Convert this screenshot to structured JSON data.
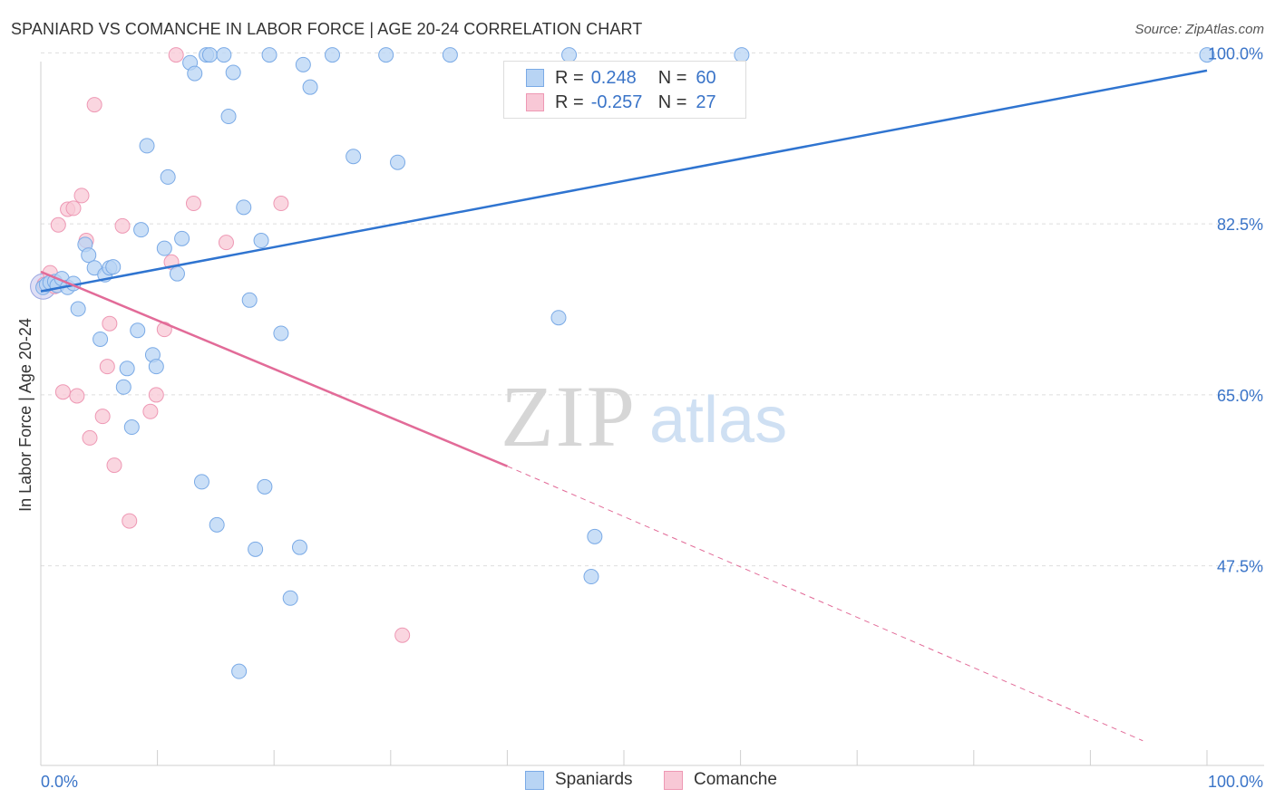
{
  "header": {
    "title": "SPANIARD VS COMANCHE IN LABOR FORCE | AGE 20-24 CORRELATION CHART",
    "source": "Source: ZipAtlas.com"
  },
  "colors": {
    "blue_fill": "#b8d4f4",
    "blue_stroke": "#7aaae6",
    "blue_line": "#2f74d0",
    "pink_fill": "#f8c8d6",
    "pink_stroke": "#ee98b4",
    "pink_line": "#e26b98",
    "tick_label": "#3a74c8",
    "grid": "#dedede"
  },
  "legend": {
    "rows": [
      {
        "r_label": "R =",
        "r_value": "0.248",
        "n_label": "N =",
        "n_value": "60"
      },
      {
        "r_label": "R =",
        "r_value": "-0.257",
        "n_label": "N =",
        "n_value": "27"
      }
    ]
  },
  "bottom_legend": [
    "Spaniards",
    "Comanche"
  ],
  "watermark": {
    "zip": "ZIP",
    "atlas": "atlas"
  },
  "chart_data": {
    "type": "scatter",
    "title": "SPANIARD VS COMANCHE IN LABOR FORCE | AGE 20-24 CORRELATION CHART",
    "xlabel": "",
    "ylabel": "In Labor Force | Age 20-24",
    "xlim": [
      0,
      100
    ],
    "ylim": [
      28,
      98
    ],
    "x_tick_labels": [
      "0.0%",
      "100.0%"
    ],
    "y_ticks": [
      47.5,
      65.0,
      82.5,
      100.0
    ],
    "y_tick_labels": [
      "47.5%",
      "65.0%",
      "82.5%",
      "100.0%"
    ],
    "grid": true,
    "series": [
      {
        "name": "Spaniards",
        "color": "#b8d4f4",
        "points": [
          [
            0.2,
            76.0
          ],
          [
            0.5,
            76.3
          ],
          [
            0.8,
            76.5
          ],
          [
            1.2,
            76.6
          ],
          [
            1.4,
            76.2
          ],
          [
            1.8,
            76.9
          ],
          [
            2.3,
            76.0
          ],
          [
            2.8,
            76.4
          ],
          [
            3.2,
            73.8
          ],
          [
            3.8,
            80.4
          ],
          [
            4.1,
            79.3
          ],
          [
            4.6,
            78.0
          ],
          [
            5.1,
            70.7
          ],
          [
            5.5,
            77.3
          ],
          [
            5.9,
            78.0
          ],
          [
            6.2,
            78.1
          ],
          [
            7.1,
            65.8
          ],
          [
            7.4,
            67.7
          ],
          [
            7.8,
            61.7
          ],
          [
            8.3,
            71.6
          ],
          [
            8.6,
            81.9
          ],
          [
            9.1,
            90.5
          ],
          [
            9.6,
            69.1
          ],
          [
            9.9,
            67.9
          ],
          [
            10.6,
            80.0
          ],
          [
            10.9,
            87.3
          ],
          [
            11.7,
            77.4
          ],
          [
            12.1,
            81.0
          ],
          [
            12.8,
            99.0
          ],
          [
            13.2,
            97.9
          ],
          [
            13.8,
            56.1
          ],
          [
            14.2,
            99.8
          ],
          [
            14.5,
            99.8
          ],
          [
            15.1,
            51.7
          ],
          [
            15.7,
            99.8
          ],
          [
            16.1,
            93.5
          ],
          [
            16.5,
            98.0
          ],
          [
            17.0,
            36.7
          ],
          [
            17.4,
            84.2
          ],
          [
            17.9,
            74.7
          ],
          [
            18.4,
            49.2
          ],
          [
            18.9,
            80.8
          ],
          [
            19.2,
            55.6
          ],
          [
            19.6,
            99.8
          ],
          [
            20.6,
            71.3
          ],
          [
            21.4,
            44.2
          ],
          [
            22.2,
            49.4
          ],
          [
            22.5,
            98.8
          ],
          [
            23.1,
            96.5
          ],
          [
            25.0,
            99.8
          ],
          [
            26.8,
            89.4
          ],
          [
            29.6,
            99.8
          ],
          [
            30.6,
            88.8
          ],
          [
            35.1,
            99.8
          ],
          [
            44.4,
            72.9
          ],
          [
            45.3,
            99.8
          ],
          [
            47.2,
            46.4
          ],
          [
            47.5,
            50.5
          ],
          [
            60.1,
            99.8
          ],
          [
            100.0,
            99.8
          ]
        ]
      },
      {
        "name": "Comanche",
        "color": "#f8c8d6",
        "points": [
          [
            0.3,
            76.3
          ],
          [
            0.8,
            77.5
          ],
          [
            1.2,
            76.1
          ],
          [
            1.5,
            82.4
          ],
          [
            1.9,
            65.3
          ],
          [
            2.3,
            84.0
          ],
          [
            2.8,
            84.1
          ],
          [
            3.1,
            64.9
          ],
          [
            3.5,
            85.4
          ],
          [
            3.9,
            80.8
          ],
          [
            4.2,
            60.6
          ],
          [
            4.6,
            94.7
          ],
          [
            5.3,
            62.8
          ],
          [
            5.7,
            67.9
          ],
          [
            5.9,
            72.3
          ],
          [
            6.3,
            57.8
          ],
          [
            7.0,
            82.3
          ],
          [
            7.6,
            52.1
          ],
          [
            9.4,
            63.3
          ],
          [
            9.9,
            65.0
          ],
          [
            10.6,
            71.7
          ],
          [
            11.2,
            78.6
          ],
          [
            11.6,
            99.8
          ],
          [
            13.1,
            84.6
          ],
          [
            15.9,
            80.6
          ],
          [
            20.6,
            84.6
          ],
          [
            31.0,
            40.4
          ]
        ]
      }
    ],
    "trend_lines": [
      {
        "series": "Spaniards",
        "x0": 0,
        "y0": 75.6,
        "x1": 100,
        "y1": 98.2,
        "style": "solid"
      },
      {
        "series": "Comanche",
        "x0": 0,
        "y0": 77.6,
        "x1": 40,
        "y1": 57.7,
        "style": "solid"
      },
      {
        "series": "Comanche",
        "x0": 40,
        "y0": 57.7,
        "x1": 94.5,
        "y1": 29.6,
        "style": "dashed"
      }
    ]
  }
}
